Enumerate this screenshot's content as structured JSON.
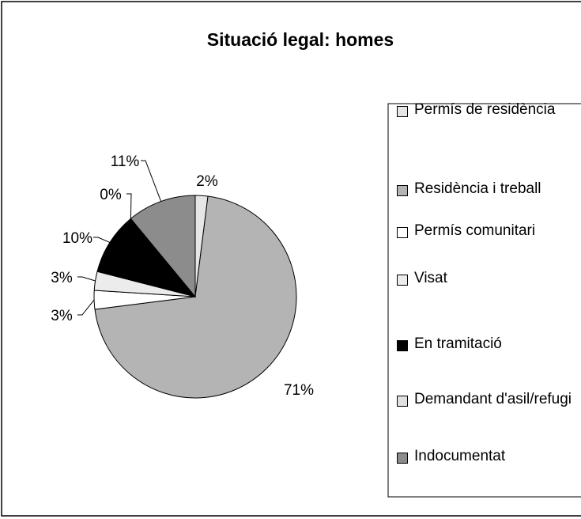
{
  "chart_data": {
    "type": "pie",
    "title": "Situació legal: homes",
    "categories": [
      "Permís de residència",
      "Residència i treball",
      "Permís comunitari",
      "Visat",
      "En tramitació",
      "Demandant d'asil/refugi",
      "Indocumentat"
    ],
    "values": [
      2,
      71,
      3,
      3,
      10,
      0,
      11
    ],
    "value_labels": [
      "2%",
      "71%",
      "3%",
      "3%",
      "10%",
      "0%",
      "11%"
    ],
    "colors": [
      "#e6e6e6",
      "#b4b4b4",
      "#ffffff",
      "#ececec",
      "#000000",
      "#e0e0e0",
      "#8c8c8c"
    ],
    "legend": "right"
  }
}
